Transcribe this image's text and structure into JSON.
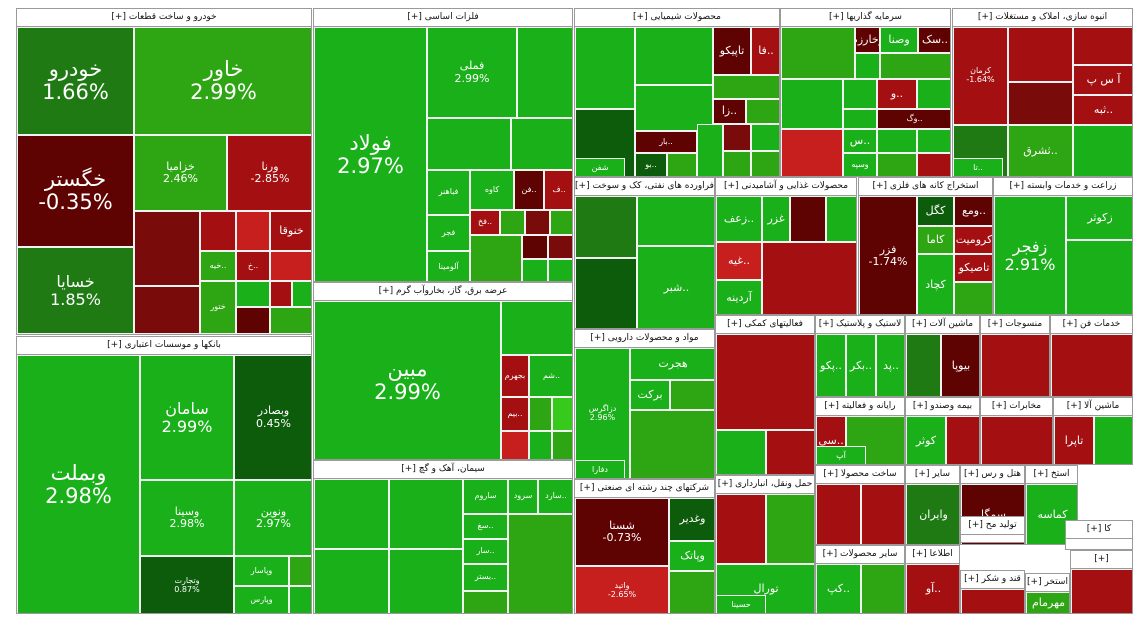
{
  "heatmap": {
    "colors": {
      "strong_green": "#1ab01a",
      "dark_green": "#0d5c0b",
      "red": "#a40f12",
      "dark_red": "#5e0202"
    },
    "sectors": [
      {
        "title": "خودرو و ساخت قطعات [+]",
        "tiles": [
          {
            "name": "خودرو",
            "pct": "1.66%"
          },
          {
            "name": "خاور",
            "pct": "2.99%"
          },
          {
            "name": "خگستر",
            "pct": "-0.35%"
          },
          {
            "name": "خزامیا",
            "pct": "2.46%"
          },
          {
            "name": "ورنا",
            "pct": "-2.85%"
          },
          {
            "name": "خسایا",
            "pct": "1.85%"
          },
          {
            "name": "خنوقا",
            "pct": ""
          },
          {
            "name": "..خیه",
            "pct": ""
          },
          {
            "name": "ختور",
            "pct": ""
          },
          {
            "name": "..خ",
            "pct": ""
          }
        ]
      },
      {
        "title": "فلزات اساسی [+]",
        "tiles": [
          {
            "name": "فولاد",
            "pct": "2.97%"
          },
          {
            "name": "فملی",
            "pct": "2.99%"
          },
          {
            "name": "فباهنر",
            "pct": ""
          },
          {
            "name": "کاوه",
            "pct": ""
          },
          {
            "name": "فجر",
            "pct": ""
          },
          {
            "name": "آلومینا",
            "pct": ""
          },
          {
            "name": "..فن",
            "pct": ""
          },
          {
            "name": "..ف",
            "pct": ""
          },
          {
            "name": "..فخ",
            "pct": ""
          }
        ]
      },
      {
        "title": "محصولات شیمیایی [+]",
        "tiles": [
          {
            "name": "تاپیکو",
            "pct": ""
          },
          {
            "name": "..فا",
            "pct": ""
          },
          {
            "name": "..زا",
            "pct": ""
          },
          {
            "name": "..بار",
            "pct": ""
          },
          {
            "name": "..بو",
            "pct": ""
          },
          {
            "name": "شفن",
            "pct": ""
          }
        ]
      },
      {
        "title": "سرمایه گذاریها [+]",
        "tiles": [
          {
            "name": "وخارزم",
            "pct": ""
          },
          {
            "name": "وصنا",
            "pct": ""
          },
          {
            "name": "..سک",
            "pct": ""
          },
          {
            "name": "..و",
            "pct": ""
          },
          {
            "name": "..وگ",
            "pct": ""
          },
          {
            "name": "..س",
            "pct": ""
          },
          {
            "name": "وسپه",
            "pct": ""
          }
        ]
      },
      {
        "title": "انبوه سازی، املاک و مستغلات [+]",
        "tiles": [
          {
            "name": "کرمان",
            "pct": "-1.64%"
          },
          {
            "name": "آ س پ",
            "pct": ""
          },
          {
            "name": "..ثبه",
            "pct": ""
          },
          {
            "name": "..تا",
            "pct": ""
          },
          {
            "name": "..ثشرق",
            "pct": ""
          }
        ]
      },
      {
        "title": "بانکها و موسسات اعتباری [+]",
        "tiles": [
          {
            "name": "وبملت",
            "pct": "2.98%"
          },
          {
            "name": "سامان",
            "pct": "2.99%"
          },
          {
            "name": "وبصادر",
            "pct": "0.45%"
          },
          {
            "name": "وسینا",
            "pct": "2.98%"
          },
          {
            "name": "ونوین",
            "pct": "2.97%"
          },
          {
            "name": "وتجارت",
            "pct": "0.87%"
          },
          {
            "name": "وپاسار",
            "pct": ""
          },
          {
            "name": "وپارس",
            "pct": ""
          }
        ]
      },
      {
        "title": "عرضه برق، گاز، بخاروآب گرم [+]",
        "tiles": [
          {
            "name": "مبین",
            "pct": "2.99%"
          },
          {
            "name": "بجهرم",
            "pct": ""
          },
          {
            "name": "..شم",
            "pct": ""
          },
          {
            "name": "..بیم",
            "pct": ""
          }
        ]
      },
      {
        "title": "سیمان، آهک و گچ [+]",
        "tiles": [
          {
            "name": "ساروم",
            "pct": ""
          },
          {
            "name": "سرود",
            "pct": ""
          },
          {
            "name": "..سارد",
            "pct": ""
          },
          {
            "name": "..سغ",
            "pct": ""
          },
          {
            "name": "..سار",
            "pct": ""
          },
          {
            "name": "..بستر",
            "pct": ""
          }
        ]
      },
      {
        "title": "فراورده های نفتی، کک و سوخت [+]",
        "tiles": [
          {
            "name": "..شبر",
            "pct": ""
          }
        ]
      },
      {
        "title": "محصولات غذایی و آشامیدنی [+]",
        "tiles": [
          {
            "name": "..زعف",
            "pct": ""
          },
          {
            "name": "غزر",
            "pct": ""
          },
          {
            "name": "..غیه",
            "pct": ""
          },
          {
            "name": "آردینه",
            "pct": ""
          }
        ]
      },
      {
        "title": "استخراج کانه های فلزی [+]",
        "tiles": [
          {
            "name": "کگل",
            "pct": ""
          },
          {
            "name": "..ومع",
            "pct": ""
          },
          {
            "name": "فزر",
            "pct": "-1.74%"
          },
          {
            "name": "کاما",
            "pct": ""
          },
          {
            "name": "کرومیت",
            "pct": ""
          },
          {
            "name": "تاصیکو",
            "pct": ""
          },
          {
            "name": "کچاد",
            "pct": ""
          }
        ]
      },
      {
        "title": "زراعت و خدمات وابسته [+]",
        "tiles": [
          {
            "name": "زکوثر",
            "pct": ""
          },
          {
            "name": "زفجر",
            "pct": "2.91%"
          }
        ]
      },
      {
        "title": "مواد و محصولات دارویی [+]",
        "tiles": [
          {
            "name": "هجرت",
            "pct": ""
          },
          {
            "name": "برکت",
            "pct": ""
          },
          {
            "name": "دزاگرس",
            "pct": "2.96%"
          },
          {
            "name": "دفارا",
            "pct": ""
          }
        ]
      },
      {
        "title": "شرکتهای چند رشته ای صنعتی [+]",
        "tiles": [
          {
            "name": "شستا",
            "pct": "-0.73%"
          },
          {
            "name": "وغدیر",
            "pct": ""
          },
          {
            "name": "وپاتک",
            "pct": ""
          },
          {
            "name": "واتید",
            "pct": "-2.65%"
          }
        ]
      },
      {
        "title": "فعالیتهای کمکی [+]",
        "tiles": []
      },
      {
        "title": "حمل ونقل، انبارداری [+]",
        "tiles": [
          {
            "name": "تورال",
            "pct": ""
          },
          {
            "name": "حسینا",
            "pct": ""
          }
        ]
      },
      {
        "title": "لاستیک و پلاستیک [+]",
        "tiles": [
          {
            "name": "..پکو",
            "pct": ""
          },
          {
            "name": "..بکر",
            "pct": ""
          },
          {
            "name": "..پد",
            "pct": ""
          }
        ]
      },
      {
        "title": "ماشین آلات [+]",
        "tiles": [
          {
            "name": "بیوپا",
            "pct": ""
          }
        ]
      },
      {
        "title": "منسوجات [+]",
        "tiles": []
      },
      {
        "title": "خدمات فن [+]",
        "tiles": []
      },
      {
        "title": "رایانه و فعالیته [+]",
        "tiles": [
          {
            "name": "..سی",
            "pct": ""
          },
          {
            "name": "آپ",
            "pct": ""
          }
        ]
      },
      {
        "title": "بیمه وصندو [+]",
        "tiles": [
          {
            "name": "کوثر",
            "pct": ""
          }
        ]
      },
      {
        "title": "مخابرات [+]",
        "tiles": []
      },
      {
        "title": "ماشین آلا [+]",
        "tiles": [
          {
            "name": "تاپرا",
            "pct": ""
          }
        ]
      },
      {
        "title": "ساخت محصولا [+]",
        "tiles": []
      },
      {
        "title": "سایر [+]",
        "tiles": [
          {
            "name": "وایران",
            "pct": ""
          }
        ]
      },
      {
        "title": "هتل و رس [+]",
        "tiles": [
          {
            "name": "سمگا",
            "pct": ""
          }
        ]
      },
      {
        "title": "استخ [+]",
        "tiles": [
          {
            "name": "کماسه",
            "pct": ""
          }
        ]
      },
      {
        "title": "سایر محصولات [+]",
        "tiles": [
          {
            "name": "..کپ",
            "pct": ""
          }
        ]
      },
      {
        "title": "تولید مح [+]",
        "tiles": []
      },
      {
        "title": "اطلاعا [+]",
        "tiles": [
          {
            "name": "..آو",
            "pct": ""
          }
        ]
      },
      {
        "title": "قند و شکر [+]",
        "tiles": []
      },
      {
        "title": "کا [+]",
        "tiles": []
      },
      {
        "title": "استخر [+]",
        "tiles": [
          {
            "name": "مهرمام",
            "pct": ""
          }
        ]
      },
      {
        "title": "[+]",
        "tiles": []
      }
    ]
  }
}
